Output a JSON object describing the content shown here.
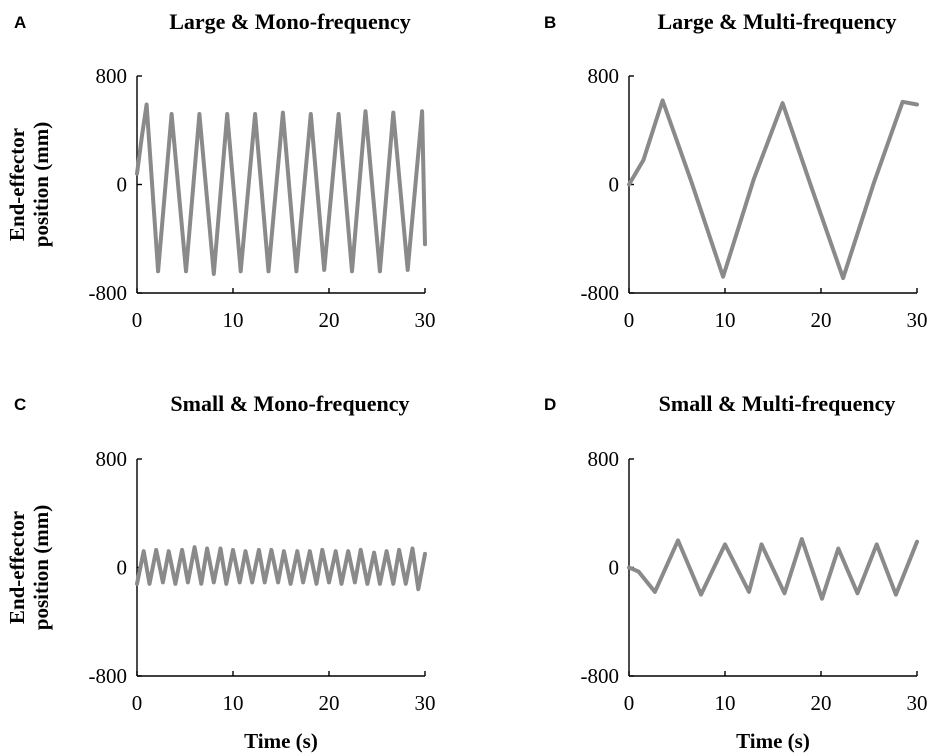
{
  "chart_data": [
    {
      "panel": "A",
      "title": "Large & Mono-frequency",
      "type": "line",
      "ylabel": [
        "End-effector",
        "position (mm)"
      ],
      "xlabel": "",
      "xlim": [
        0,
        30
      ],
      "ylim": [
        -800,
        800
      ],
      "xticks": [
        "0",
        "10",
        "20",
        "30"
      ],
      "yticks": [
        "800",
        "0",
        "-800"
      ],
      "series": [
        {
          "color": "#8a8a8a",
          "x": [
            0,
            0.5,
            1.0,
            2.2,
            3.6,
            5.1,
            6.5,
            8.0,
            9.4,
            10.8,
            12.3,
            13.7,
            15.2,
            16.6,
            18.1,
            19.5,
            21.0,
            22.4,
            23.8,
            25.3,
            26.7,
            28.2,
            29.7,
            30
          ],
          "y": [
            80,
            350,
            590,
            -640,
            520,
            -640,
            520,
            -660,
            520,
            -640,
            520,
            -640,
            530,
            -640,
            520,
            -630,
            520,
            -640,
            540,
            -640,
            530,
            -630,
            540,
            -440
          ]
        }
      ]
    },
    {
      "panel": "B",
      "title": "Large & Multi-frequency",
      "type": "line",
      "ylabel": [],
      "xlabel": "",
      "xlim": [
        0,
        30
      ],
      "ylim": [
        -800,
        800
      ],
      "xticks": [
        "0",
        "10",
        "20",
        "30"
      ],
      "yticks": [
        "800",
        "0",
        "-800"
      ],
      "series": [
        {
          "color": "#8a8a8a",
          "x": [
            0,
            1.5,
            3.5,
            6.5,
            9.8,
            13.0,
            16.0,
            19.0,
            22.3,
            25.5,
            28.5,
            30
          ],
          "y": [
            0,
            180,
            620,
            20,
            -680,
            40,
            600,
            -20,
            -690,
            10,
            610,
            590
          ]
        }
      ]
    },
    {
      "panel": "C",
      "title": "Small & Mono-frequency",
      "type": "line",
      "ylabel": [
        "End-effector",
        "position (mm)"
      ],
      "xlabel": "Time (s)",
      "xlim": [
        0,
        30
      ],
      "ylim": [
        -800,
        800
      ],
      "xticks": [
        "0",
        "10",
        "20",
        "30"
      ],
      "yticks": [
        "800",
        "0",
        "-800"
      ],
      "series": [
        {
          "color": "#8a8a8a",
          "x": [
            0,
            0.7,
            1.3,
            2.0,
            2.7,
            3.3,
            4.0,
            4.7,
            5.3,
            6.0,
            6.7,
            7.3,
            8.0,
            8.7,
            9.3,
            10.0,
            10.7,
            11.3,
            12.0,
            12.7,
            13.3,
            14.0,
            14.7,
            15.3,
            16.0,
            16.7,
            17.3,
            18.0,
            18.7,
            19.3,
            20.0,
            20.7,
            21.3,
            22.0,
            22.7,
            23.3,
            24.0,
            24.7,
            25.3,
            26.0,
            26.7,
            27.3,
            28.0,
            28.7,
            29.3,
            30.0
          ],
          "y": [
            -120,
            120,
            -120,
            130,
            -110,
            120,
            -120,
            130,
            -110,
            150,
            -120,
            140,
            -110,
            140,
            -120,
            130,
            -110,
            120,
            -110,
            130,
            -110,
            130,
            -110,
            120,
            -120,
            120,
            -110,
            120,
            -120,
            130,
            -110,
            120,
            -120,
            120,
            -110,
            130,
            -120,
            110,
            -120,
            120,
            -120,
            130,
            -120,
            140,
            -160,
            100
          ]
        }
      ]
    },
    {
      "panel": "D",
      "title": "Small & Multi-frequency",
      "type": "line",
      "ylabel": [],
      "xlabel": "Time (s)",
      "xlim": [
        0,
        30
      ],
      "ylim": [
        -800,
        800
      ],
      "xticks": [
        "0",
        "10",
        "20",
        "30"
      ],
      "yticks": [
        "800",
        "0",
        "-800"
      ],
      "series": [
        {
          "color": "#8a8a8a",
          "x": [
            0,
            1.0,
            2.7,
            5.1,
            7.5,
            10.0,
            12.5,
            13.8,
            16.2,
            18.0,
            20.1,
            21.8,
            23.8,
            25.8,
            27.8,
            30.0
          ],
          "y": [
            0,
            -30,
            -180,
            200,
            -200,
            170,
            -180,
            170,
            -190,
            210,
            -230,
            140,
            -190,
            170,
            -200,
            190
          ]
        }
      ]
    }
  ]
}
